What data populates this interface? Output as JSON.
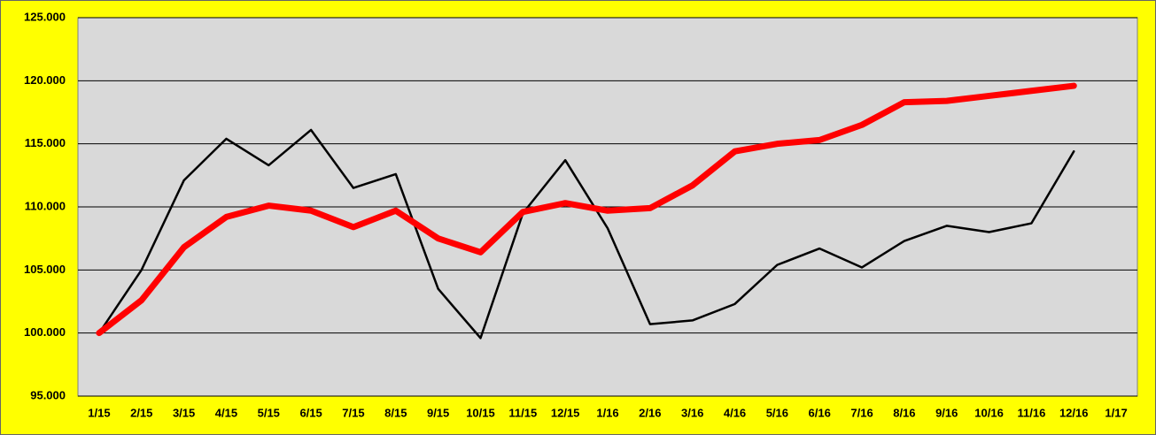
{
  "chart_data": {
    "type": "line",
    "categories": [
      "1/15",
      "2/15",
      "3/15",
      "4/15",
      "5/15",
      "6/15",
      "7/15",
      "8/15",
      "9/15",
      "10/15",
      "11/15",
      "12/15",
      "1/16",
      "2/16",
      "3/16",
      "4/16",
      "5/16",
      "6/16",
      "7/16",
      "8/16",
      "9/16",
      "10/16",
      "11/16",
      "12/16",
      "1/17"
    ],
    "series": [
      {
        "color": "#000000",
        "values": [
          100.0,
          105.0,
          112.1,
          115.4,
          113.3,
          116.1,
          111.5,
          112.6,
          103.5,
          99.6,
          109.5,
          113.7,
          108.3,
          100.7,
          101.0,
          102.3,
          105.4,
          106.7,
          105.2,
          107.3,
          108.5,
          108.0,
          108.7,
          114.4,
          null
        ]
      },
      {
        "color": "#ff0000",
        "values": [
          100.0,
          102.6,
          106.8,
          109.2,
          110.1,
          109.7,
          108.4,
          109.7,
          107.5,
          106.4,
          109.6,
          110.3,
          109.7,
          109.9,
          111.7,
          114.4,
          115.0,
          115.3,
          116.5,
          118.3,
          118.4,
          118.8,
          119.2,
          119.6,
          null
        ]
      }
    ],
    "ylim": [
      95,
      125
    ],
    "yticks": [
      {
        "value": 95,
        "label": "95.000"
      },
      {
        "value": 100,
        "label": "100.000"
      },
      {
        "value": 105,
        "label": "105.000"
      },
      {
        "value": 110,
        "label": "110.000"
      },
      {
        "value": 115,
        "label": "115.000"
      },
      {
        "value": 120,
        "label": "120.000"
      },
      {
        "value": 125,
        "label": "125.000"
      }
    ],
    "grid": true
  }
}
